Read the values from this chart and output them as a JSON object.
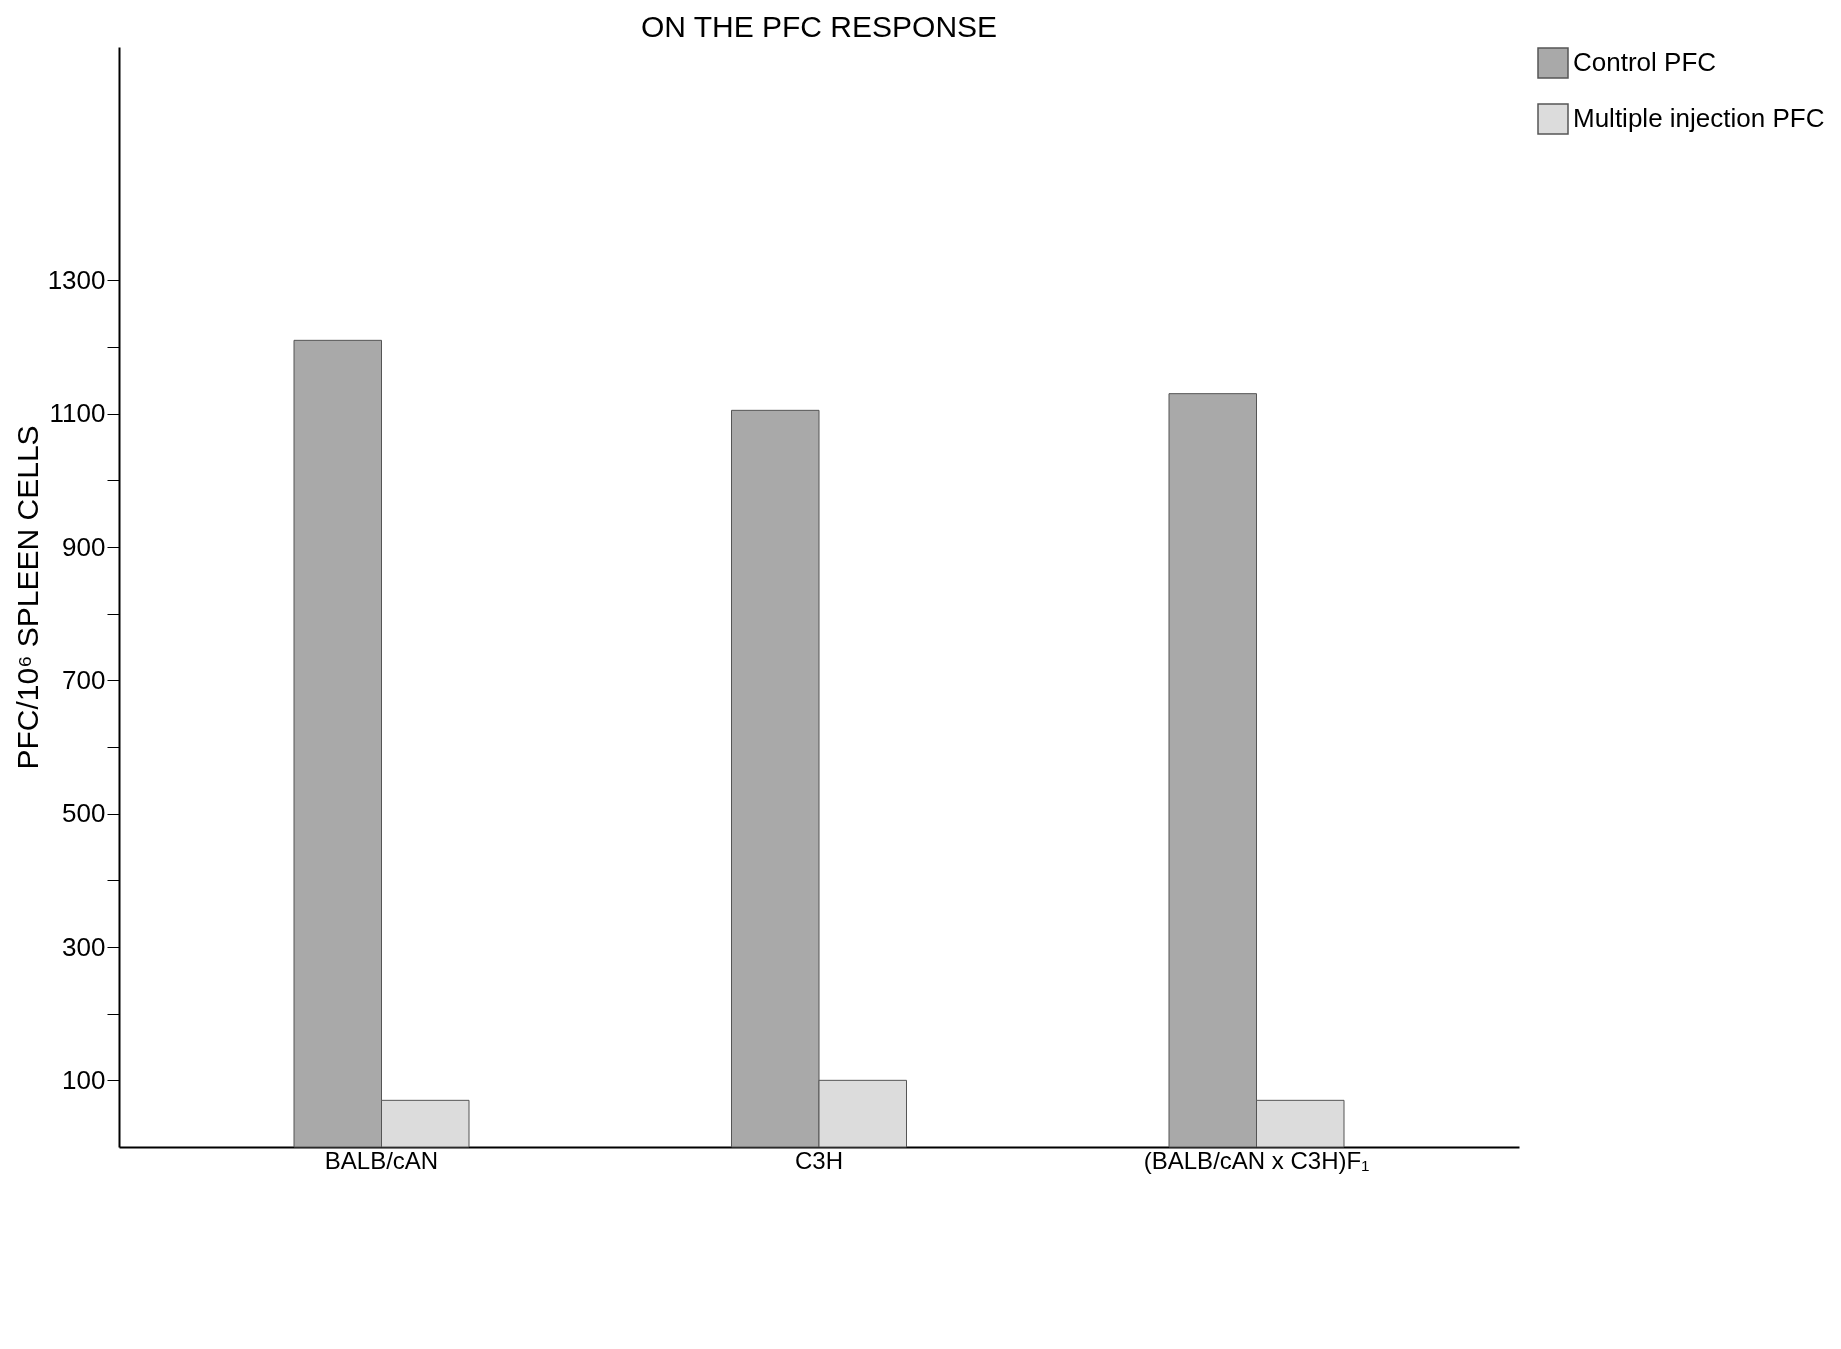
{
  "chart_data": {
    "type": "bar",
    "title": "ON THE PFC RESPONSE",
    "ylabel": "PFC/10⁶ SPLEEN CELLS",
    "categories": [
      "BALB/cAN",
      "C3H",
      "(BALB/cAN x C3H)F₁"
    ],
    "series": [
      {
        "name": "Control PFC",
        "color": "#a9a9a9",
        "values": [
          1210,
          1105,
          1130
        ]
      },
      {
        "name": "Multiple injection PFC",
        "color": "#dcdcdc",
        "values": [
          70,
          100,
          70
        ]
      }
    ],
    "ylim": [
      0,
      1650
    ],
    "yticks": [
      100,
      {
        "value": 200,
        "label": null
      },
      300,
      {
        "value": 400,
        "label": null
      },
      500,
      {
        "value": 600,
        "label": null
      },
      700,
      {
        "value": 800,
        "label": null
      },
      900,
      {
        "value": 1000,
        "label": null
      },
      1100,
      {
        "value": 1200,
        "label": null
      },
      1300
    ],
    "grid": false,
    "legend": "right"
  }
}
